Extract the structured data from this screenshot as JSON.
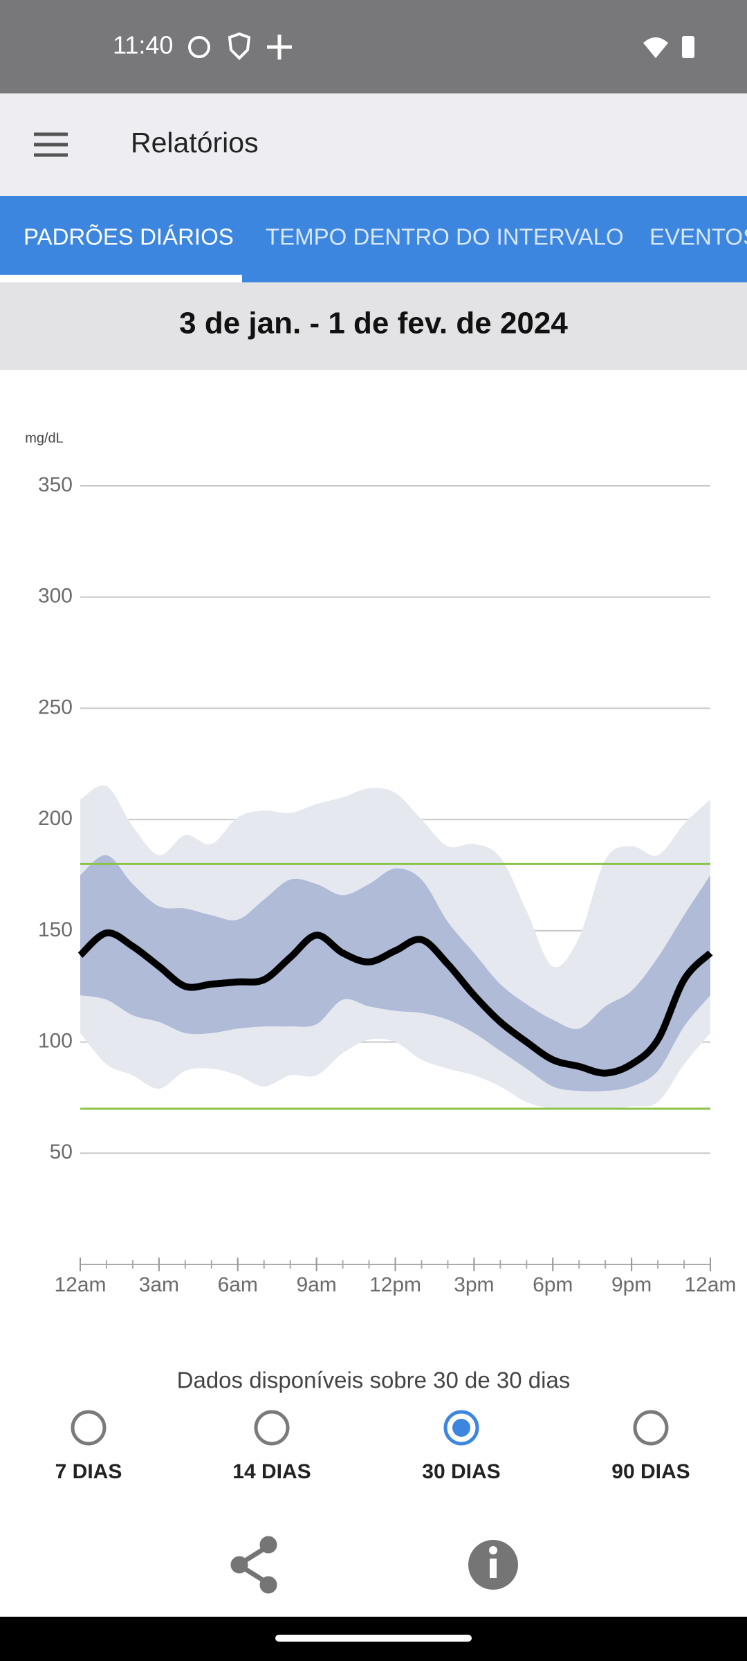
{
  "status_bar": {
    "time": "11:40"
  },
  "app_bar": {
    "title": "Relatórios"
  },
  "tabs": {
    "items": [
      "PADRÕES DIÁRIOS",
      "TEMPO DENTRO DO INTERVALO",
      "EVENTOS"
    ],
    "selected": 0
  },
  "date_range": "3 de jan. - 1 de fev. de 2024",
  "chart_data": {
    "type": "line",
    "y_label": "mg/dL",
    "x": [
      0,
      1,
      2,
      3,
      4,
      5,
      6,
      7,
      8,
      9,
      10,
      11,
      12,
      13,
      14,
      15,
      16,
      17,
      18,
      19,
      20,
      21,
      22,
      23,
      24
    ],
    "xlim": [
      0,
      24
    ],
    "xticks": [
      {
        "value": 0,
        "label": "12am"
      },
      {
        "value": 3,
        "label": "3am"
      },
      {
        "value": 6,
        "label": "6am"
      },
      {
        "value": 9,
        "label": "9am"
      },
      {
        "value": 12,
        "label": "12pm"
      },
      {
        "value": 15,
        "label": "3pm"
      },
      {
        "value": 18,
        "label": "6pm"
      },
      {
        "value": 21,
        "label": "9pm"
      },
      {
        "value": 24,
        "label": "12am"
      }
    ],
    "ylim": [
      0,
      350
    ],
    "yticks": [
      50,
      100,
      150,
      200,
      250,
      300,
      350
    ],
    "grid": true,
    "reference_lines": [
      70,
      180
    ],
    "reference_color": "#8bc34a",
    "series": [
      {
        "color": "#e6e8f0",
        "upper": [
          209,
          215,
          197,
          184,
          193,
          189,
          201,
          204,
          203,
          207,
          210,
          214,
          212,
          200,
          188,
          189,
          183,
          159,
          134,
          147,
          182,
          188,
          184,
          198,
          209
        ],
        "lower": [
          104,
          90,
          85,
          79,
          87,
          88,
          85,
          80,
          85,
          85,
          95,
          101,
          100,
          92,
          88,
          85,
          80,
          73,
          70,
          70,
          70,
          71,
          73,
          90,
          104
        ]
      },
      {
        "color": "#b0bbd8",
        "upper": [
          175,
          184,
          171,
          161,
          160,
          157,
          155,
          164,
          173,
          171,
          166,
          171,
          178,
          173,
          154,
          140,
          126,
          117,
          110,
          106,
          116,
          123,
          138,
          157,
          175
        ],
        "lower": [
          121,
          119,
          112,
          109,
          104,
          104,
          106,
          107,
          107,
          108,
          119,
          116,
          114,
          113,
          110,
          104,
          96,
          88,
          80,
          78,
          78,
          80,
          87,
          107,
          121
        ]
      },
      {
        "color": "#000000",
        "values": [
          139,
          149,
          143,
          134,
          125,
          126,
          127,
          128,
          138,
          148,
          140,
          136,
          141,
          146,
          135,
          121,
          109,
          100,
          92,
          89,
          86,
          90,
          101,
          128,
          140
        ]
      }
    ]
  },
  "availability": "Dados disponíveis sobre 30 de 30 dias",
  "periods": {
    "items": [
      "7 DIAS",
      "14 DIAS",
      "30 DIAS",
      "90 DIAS"
    ],
    "selected": 2
  }
}
